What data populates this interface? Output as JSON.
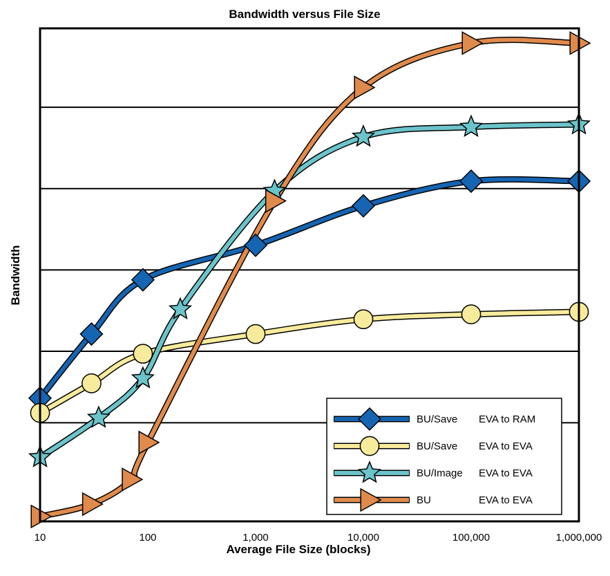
{
  "chart_data": {
    "type": "line",
    "title": "Bandwidth versus File Size",
    "xlabel": "Average File Size (blocks)",
    "ylabel": "Bandwidth",
    "x_scale": "log",
    "xlim": [
      10,
      1000000
    ],
    "ylim": [
      0,
      100
    ],
    "x_ticks": [
      "10",
      "100",
      "1,000",
      "10,000",
      "100,000",
      "1,000,000"
    ],
    "grid": "horizontal",
    "legend_position": "bottom-right",
    "series": [
      {
        "name": "BU/Save",
        "path": "EVA to RAM",
        "marker": "diamond",
        "color": "#1565b3",
        "x": [
          10,
          30,
          90,
          1000,
          10000,
          100000,
          1000000
        ],
        "y": [
          25,
          38,
          49,
          56,
          64,
          69,
          69
        ]
      },
      {
        "name": "BU/Save",
        "path": "EVA to EVA",
        "marker": "circle",
        "color": "#f8eb9c",
        "x": [
          10,
          30,
          90,
          1000,
          10000,
          100000,
          1000000
        ],
        "y": [
          22,
          28,
          34,
          38,
          41,
          42,
          42.5
        ]
      },
      {
        "name": "BU/Image",
        "path": "EVA to EVA",
        "marker": "star",
        "color": "#6cc4cb",
        "x": [
          10,
          35,
          90,
          200,
          1500,
          10000,
          100000,
          1000000
        ],
        "y": [
          13,
          21,
          29,
          43,
          67,
          78,
          80,
          80.5
        ]
      },
      {
        "name": "BU",
        "path": "EVA to EVA",
        "marker": "triangle-right",
        "color": "#e08a4c",
        "x": [
          10,
          30,
          70,
          100,
          1500,
          10000,
          100000,
          1000000
        ],
        "y": [
          1,
          3.5,
          8.5,
          16,
          65,
          88,
          97,
          97
        ]
      }
    ]
  }
}
